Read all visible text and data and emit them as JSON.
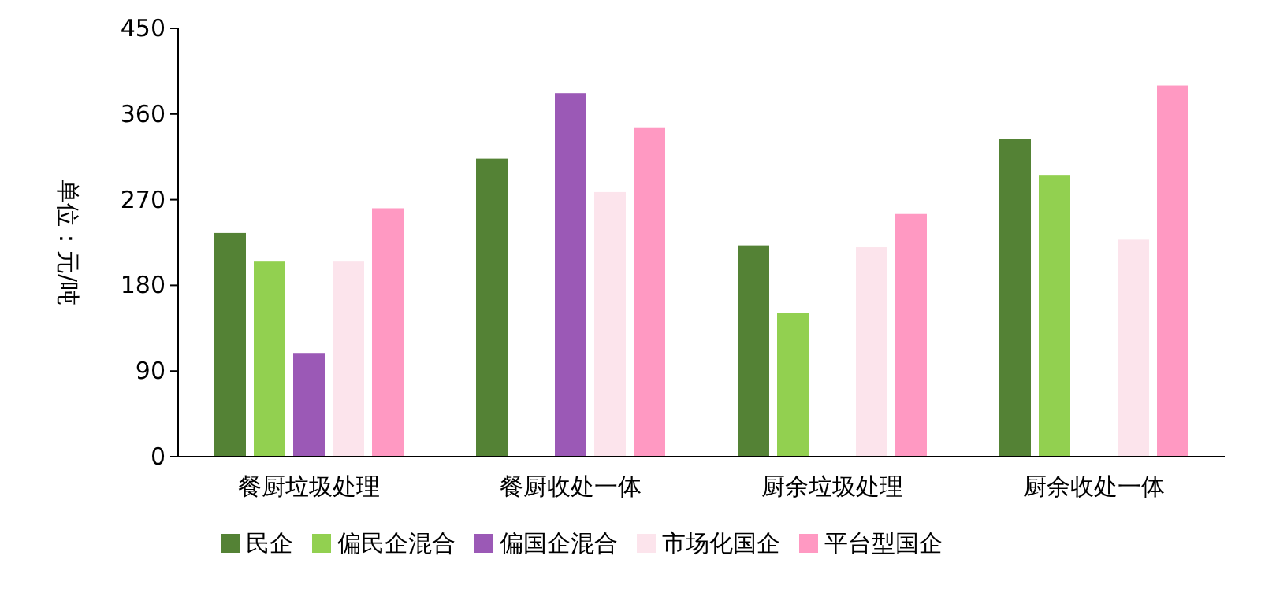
{
  "chart_data": {
    "type": "bar",
    "ylabel": "单位：元/吨",
    "categories": [
      "餐厨垃圾处理",
      "餐厨收处一体",
      "厨余垃圾处理",
      "厨余收处一体"
    ],
    "series": [
      {
        "name": "民企",
        "color": "#548235",
        "values": [
          235,
          313,
          222,
          334
        ]
      },
      {
        "name": "偏民企混合",
        "color": "#92d050",
        "values": [
          205,
          null,
          151,
          296
        ]
      },
      {
        "name": "偏国企混合",
        "color": "#9b59b6",
        "values": [
          109,
          382,
          null,
          null
        ]
      },
      {
        "name": "市场化国企",
        "color": "#fce4ec",
        "values": [
          205,
          278,
          220,
          228
        ]
      },
      {
        "name": "平台型国企",
        "color": "#ff99c2",
        "values": [
          261,
          346,
          255,
          390
        ]
      }
    ],
    "ylim": [
      0,
      450
    ],
    "yticks": [
      0,
      90,
      180,
      270,
      360,
      450
    ],
    "legend": "bottom",
    "grid": false
  }
}
